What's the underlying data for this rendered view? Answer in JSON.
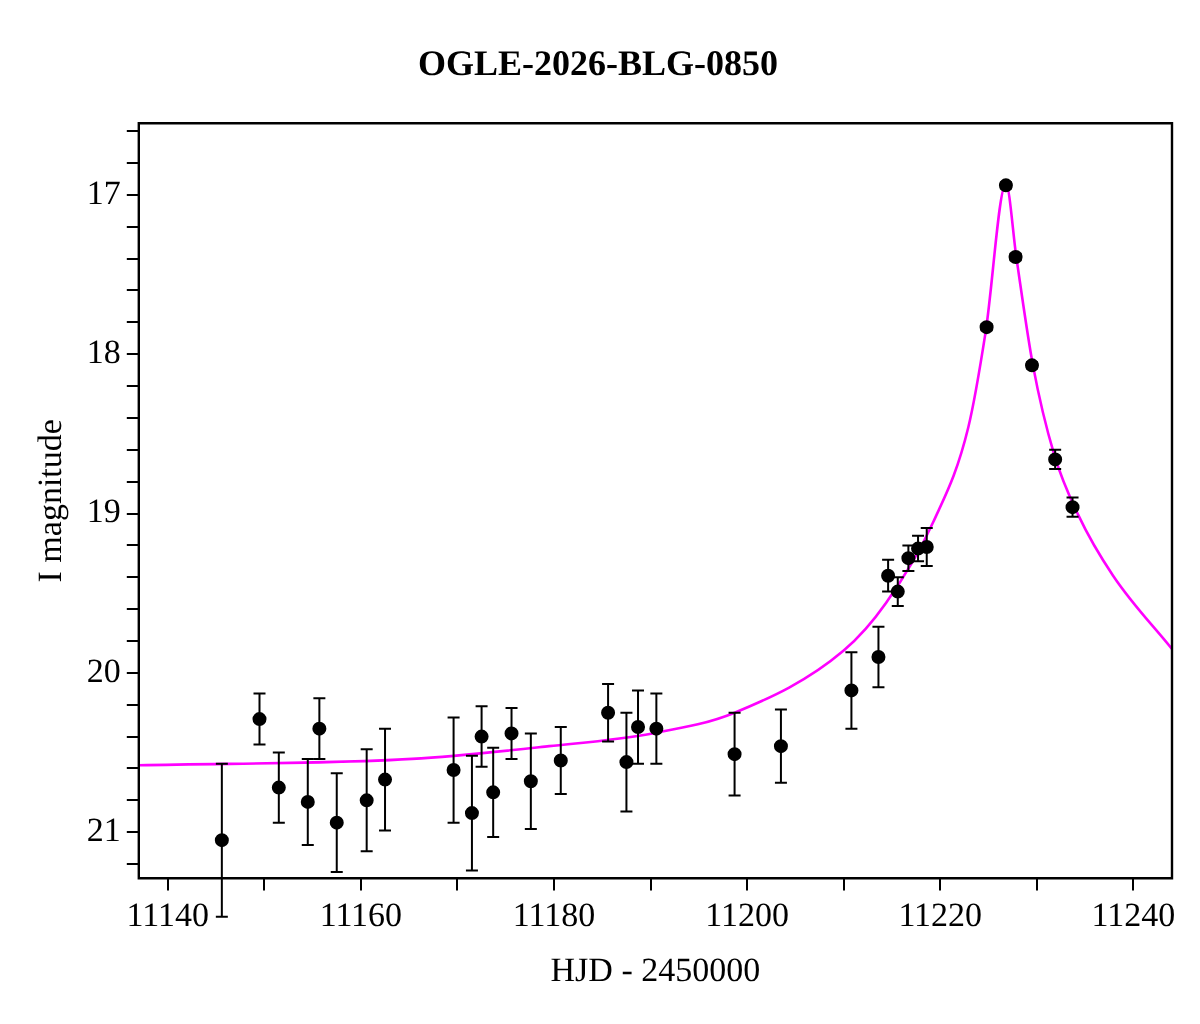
{
  "chart_data": {
    "type": "scatter",
    "title": "OGLE-2026-BLG-0850",
    "xlabel": "HJD - 2450000",
    "ylabel": "I magnitude",
    "xlim": [
      11137,
      11244
    ],
    "ylim": [
      21.29,
      16.55
    ],
    "xticks": [
      11140,
      {
        "value": 11150,
        "label": null
      },
      11160,
      {
        "value": 11170,
        "label": null
      },
      11180,
      {
        "value": 11190,
        "label": null
      },
      11200,
      {
        "value": 11210,
        "label": null
      },
      11220,
      {
        "value": 11230,
        "label": null
      },
      11240
    ],
    "yticks": [
      {
        "value": 16.6,
        "label": null
      },
      {
        "value": 16.8,
        "label": null
      },
      17,
      {
        "value": 17.2,
        "label": null
      },
      {
        "value": 17.4,
        "label": null
      },
      {
        "value": 17.6,
        "label": null
      },
      {
        "value": 17.8,
        "label": null
      },
      18,
      {
        "value": 18.2,
        "label": null
      },
      {
        "value": 18.4,
        "label": null
      },
      {
        "value": 18.6,
        "label": null
      },
      {
        "value": 18.8,
        "label": null
      },
      19,
      {
        "value": 19.2,
        "label": null
      },
      {
        "value": 19.4,
        "label": null
      },
      {
        "value": 19.6,
        "label": null
      },
      {
        "value": 19.8,
        "label": null
      },
      20,
      {
        "value": 20.2,
        "label": null
      },
      {
        "value": 20.4,
        "label": null
      },
      {
        "value": 20.6,
        "label": null
      },
      {
        "value": 20.8,
        "label": null
      },
      21,
      {
        "value": 21.2,
        "label": null
      }
    ],
    "grid": false,
    "legend": false,
    "series": [
      {
        "type": "line",
        "color": "#ff00ff",
        "marker": "none",
        "line_style": "solid",
        "x": [
          11137,
          11165.3,
          11179.5,
          11190.2,
          11198.7,
          11210,
          11214.4,
          11219.3,
          11222.9,
          11224.7,
          11226.8,
          11227.9,
          11229.6,
          11231.8,
          11234.3,
          11237.9,
          11244
        ],
        "values": [
          20.58,
          20.54,
          20.46,
          20.38,
          20.25,
          19.86,
          19.56,
          19.05,
          18.46,
          17.86,
          16.93,
          17.4,
          18.07,
          18.63,
          19.01,
          19.39,
          19.85
        ]
      },
      {
        "type": "scatter",
        "color": "#000000",
        "marker": "circle",
        "x": [
          11145.6,
          11149.5,
          11151.5,
          11154.5,
          11155.7,
          11157.5,
          11160.6,
          11162.5,
          11169.6,
          11171.5,
          11172.5,
          11173.7,
          11175.6,
          11177.6,
          11180.7,
          11185.6,
          11187.5,
          11188.7,
          11190.6,
          11198.7,
          11203.5,
          11210.8,
          11213.6,
          11214.6,
          11215.6,
          11216.7,
          11217.7,
          11218.6,
          11224.8,
          11226.8,
          11227.8,
          11229.5,
          11231.9,
          11233.7
        ],
        "values": [
          21.05,
          20.29,
          20.72,
          20.81,
          20.35,
          20.94,
          20.8,
          20.67,
          20.61,
          20.88,
          20.4,
          20.75,
          20.38,
          20.68,
          20.55,
          20.25,
          20.56,
          20.34,
          20.35,
          20.51,
          20.46,
          20.11,
          19.9,
          19.39,
          19.49,
          19.28,
          19.22,
          19.21,
          17.83,
          16.94,
          17.39,
          18.07,
          18.66,
          18.96
        ],
        "errors": [
          0.48,
          0.16,
          0.22,
          0.27,
          0.19,
          0.31,
          0.32,
          0.32,
          0.33,
          0.36,
          0.19,
          0.28,
          0.16,
          0.3,
          0.21,
          0.18,
          0.31,
          0.23,
          0.22,
          0.26,
          0.23,
          0.24,
          0.19,
          0.1,
          0.09,
          0.08,
          0.08,
          0.12,
          0.02,
          0.02,
          0.02,
          0.02,
          0.06,
          0.06
        ]
      }
    ]
  }
}
